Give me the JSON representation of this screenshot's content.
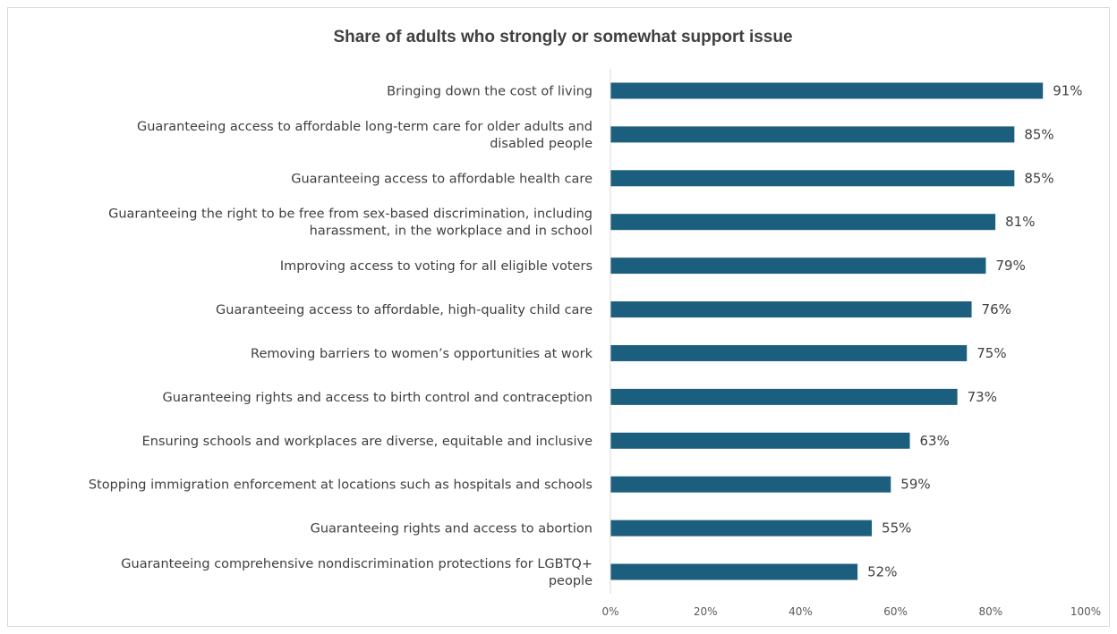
{
  "chart_data": {
    "type": "bar",
    "orientation": "horizontal",
    "title": "Share of adults who strongly or somewhat support issue",
    "xlabel": "",
    "ylabel": "",
    "xlim": [
      0,
      100
    ],
    "x_ticks": [
      "0%",
      "20%",
      "40%",
      "60%",
      "80%",
      "100%"
    ],
    "grid": false,
    "legend": "none",
    "bar_color": "#1b5e7e",
    "categories": [
      [
        "Bringing down the cost of living"
      ],
      [
        "Guaranteeing access to affordable long-term care for older adults and",
        "disabled people"
      ],
      [
        "Guaranteeing access to affordable health care"
      ],
      [
        "Guaranteeing the right to be free from sex-based discrimination, including",
        "harassment, in the workplace and in school"
      ],
      [
        "Improving access to voting for all eligible voters"
      ],
      [
        "Guaranteeing access to affordable, high-quality child care"
      ],
      [
        "Removing barriers to women’s opportunities at work"
      ],
      [
        "Guaranteeing rights and access to birth control and contraception"
      ],
      [
        "Ensuring schools and workplaces are diverse, equitable and inclusive"
      ],
      [
        "Stopping immigration enforcement at locations such as hospitals and schools"
      ],
      [
        "Guaranteeing rights and access to abortion"
      ],
      [
        "Guaranteeing comprehensive nondiscrimination protections for LGBTQ+",
        "people"
      ]
    ],
    "values": [
      91,
      85,
      85,
      81,
      79,
      76,
      75,
      73,
      63,
      59,
      55,
      52
    ],
    "data_labels": [
      "91%",
      "85%",
      "85%",
      "81%",
      "79%",
      "76%",
      "75%",
      "73%",
      "63%",
      "59%",
      "55%",
      "52%"
    ]
  }
}
